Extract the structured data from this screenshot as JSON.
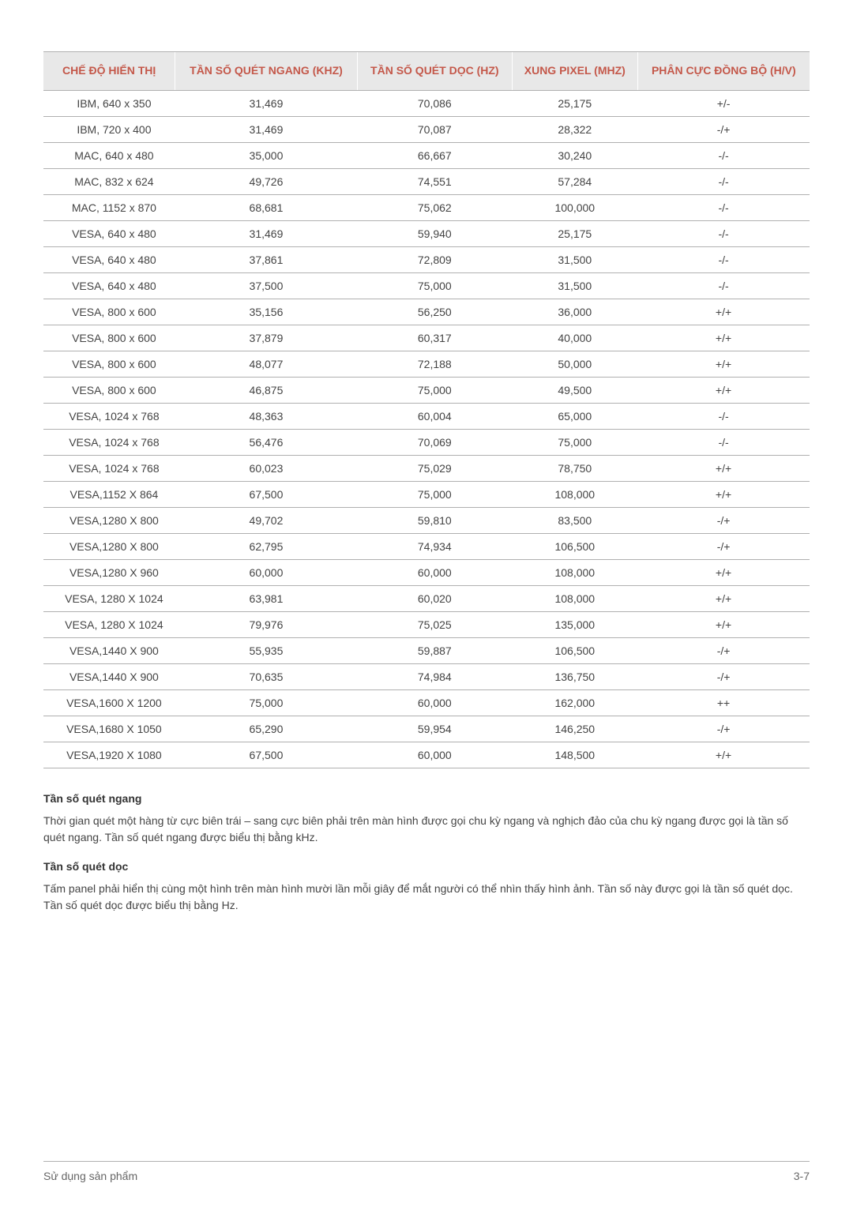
{
  "table": {
    "columns": [
      "CHẾ ĐỘ HIỂN THỊ",
      "TẦN SỐ QUÉT NGANG (KHZ)",
      "TẦN SỐ QUÉT DỌC (HZ)",
      "XUNG PIXEL (MHZ)",
      "PHÂN CỰC ĐỒNG BỘ (H/V)"
    ],
    "rows": [
      [
        "IBM, 640 x 350",
        "31,469",
        "70,086",
        "25,175",
        "+/-"
      ],
      [
        "IBM, 720 x 400",
        "31,469",
        "70,087",
        "28,322",
        "-/+"
      ],
      [
        "MAC, 640 x 480",
        "35,000",
        "66,667",
        "30,240",
        "-/-"
      ],
      [
        "MAC, 832 x 624",
        "49,726",
        "74,551",
        "57,284",
        "-/-"
      ],
      [
        "MAC, 1152 x 870",
        "68,681",
        "75,062",
        "100,000",
        "-/-"
      ],
      [
        "VESA, 640 x 480",
        "31,469",
        "59,940",
        "25,175",
        "-/-"
      ],
      [
        "VESA, 640 x 480",
        "37,861",
        "72,809",
        "31,500",
        "-/-"
      ],
      [
        "VESA, 640 x 480",
        "37,500",
        "75,000",
        "31,500",
        "-/-"
      ],
      [
        "VESA, 800 x 600",
        "35,156",
        "56,250",
        "36,000",
        "+/+"
      ],
      [
        "VESA, 800 x 600",
        "37,879",
        "60,317",
        "40,000",
        "+/+"
      ],
      [
        "VESA, 800 x 600",
        "48,077",
        "72,188",
        "50,000",
        "+/+"
      ],
      [
        "VESA, 800 x 600",
        "46,875",
        "75,000",
        "49,500",
        "+/+"
      ],
      [
        "VESA, 1024 x 768",
        "48,363",
        "60,004",
        "65,000",
        "-/-"
      ],
      [
        "VESA, 1024 x 768",
        "56,476",
        "70,069",
        "75,000",
        "-/-"
      ],
      [
        "VESA, 1024 x 768",
        "60,023",
        "75,029",
        "78,750",
        "+/+"
      ],
      [
        "VESA,1152 X 864",
        "67,500",
        "75,000",
        "108,000",
        "+/+"
      ],
      [
        "VESA,1280 X 800",
        "49,702",
        "59,810",
        "83,500",
        "-/+"
      ],
      [
        "VESA,1280 X 800",
        "62,795",
        "74,934",
        "106,500",
        "-/+"
      ],
      [
        "VESA,1280 X 960",
        "60,000",
        "60,000",
        "108,000",
        "+/+"
      ],
      [
        "VESA, 1280 X 1024",
        "63,981",
        "60,020",
        "108,000",
        "+/+"
      ],
      [
        "VESA, 1280 X 1024",
        "79,976",
        "75,025",
        "135,000",
        "+/+"
      ],
      [
        "VESA,1440 X 900",
        "55,935",
        "59,887",
        "106,500",
        "-/+"
      ],
      [
        "VESA,1440 X 900",
        "70,635",
        "74,984",
        "136,750",
        "-/+"
      ],
      [
        "VESA,1600 X 1200",
        "75,000",
        "60,000",
        "162,000",
        "++"
      ],
      [
        "VESA,1680 X 1050",
        "65,290",
        "59,954",
        "146,250",
        "-/+"
      ],
      [
        "VESA,1920 X 1080",
        "67,500",
        "60,000",
        "148,500",
        "+/+"
      ]
    ],
    "header_bg": "#e8e8e8",
    "header_color": "#c4584a",
    "border_color": "#b0b0b0"
  },
  "notes": {
    "heading1": "Tần số quét ngang",
    "text1": "Thời gian quét một hàng từ cực biên trái – sang cực biên phải trên màn hình được gọi chu kỳ ngang và nghịch đảo của chu kỳ ngang được gọi là tần số quét ngang. Tần số quét ngang được biểu thị bằng kHz.",
    "heading2": "Tần số quét dọc",
    "text2": "Tấm panel phải hiển thị cùng một hình trên màn hình mười lần mỗi giây để mắt người có thể nhìn thấy hình ảnh. Tần số này được gọi là tần số quét dọc. Tần số quét dọc được biểu thị bằng Hz."
  },
  "footer": {
    "left": "Sử dụng sản phẩm",
    "right": "3-7"
  }
}
